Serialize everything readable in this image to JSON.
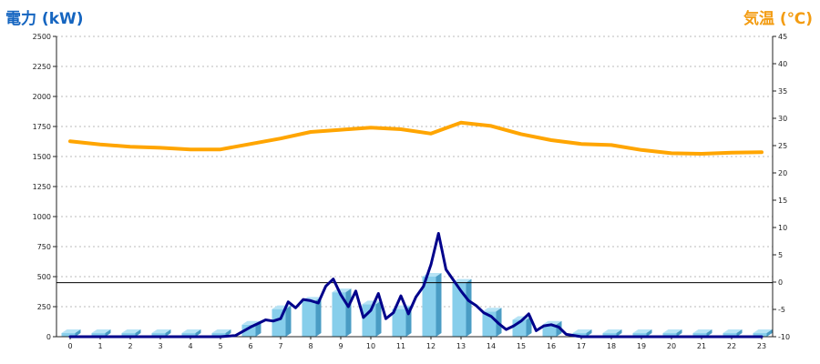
{
  "chart_data": {
    "type": "bar",
    "left_axis_label": "電力 (kW)",
    "right_axis_label": "気温 (℃)",
    "left_ylim": [
      0,
      2500
    ],
    "left_ticks": [
      0,
      250,
      500,
      750,
      1000,
      1250,
      1500,
      1750,
      2000,
      2250,
      2500
    ],
    "right_ylim": [
      -10,
      45
    ],
    "right_ticks": [
      -10,
      -5,
      0,
      5,
      10,
      15,
      20,
      25,
      30,
      35,
      40,
      45
    ],
    "categories": [
      "0",
      "1",
      "2",
      "3",
      "4",
      "5",
      "6",
      "7",
      "8",
      "9",
      "10",
      "11",
      "12",
      "13",
      "14",
      "15",
      "16",
      "17",
      "18",
      "19",
      "20",
      "21",
      "22",
      "23"
    ],
    "reference_line_kw": 450,
    "grid": true,
    "series": [
      {
        "kind": "bar",
        "color": "#87ceeb",
        "values": [
          30,
          30,
          30,
          30,
          30,
          30,
          100,
          230,
          300,
          370,
          270,
          230,
          500,
          450,
          210,
          140,
          100,
          30,
          30,
          30,
          30,
          30,
          30,
          30
        ]
      },
      {
        "kind": "line",
        "axis": "left",
        "color": "#00008b",
        "x": [
          0,
          1,
          2,
          3,
          4,
          5,
          5.5,
          6,
          6.25,
          6.5,
          6.75,
          7,
          7.25,
          7.5,
          7.75,
          8,
          8.25,
          8.5,
          8.75,
          9,
          9.25,
          9.5,
          9.75,
          10,
          10.25,
          10.5,
          10.75,
          11,
          11.25,
          11.5,
          11.75,
          12,
          12.25,
          12.5,
          12.75,
          13,
          13.25,
          13.5,
          13.75,
          14,
          14.25,
          14.5,
          14.75,
          15,
          15.25,
          15.5,
          15.75,
          16,
          16.25,
          16.5,
          17,
          18,
          19,
          20,
          21,
          22,
          23
        ],
        "values": [
          0,
          0,
          0,
          0,
          0,
          0,
          10,
          80,
          110,
          140,
          130,
          150,
          290,
          240,
          310,
          300,
          280,
          420,
          480,
          350,
          250,
          380,
          160,
          220,
          360,
          150,
          200,
          340,
          190,
          330,
          420,
          600,
          860,
          560,
          470,
          380,
          300,
          260,
          200,
          170,
          110,
          60,
          90,
          130,
          190,
          50,
          90,
          100,
          80,
          20,
          0,
          0,
          0,
          0,
          0,
          0,
          0
        ]
      },
      {
        "kind": "line",
        "axis": "right",
        "color": "#ffa500",
        "x": [
          0,
          1,
          2,
          3,
          4,
          5,
          6,
          7,
          8,
          9,
          10,
          11,
          12,
          12.5,
          13,
          14,
          15,
          16,
          17,
          18,
          19,
          20,
          21,
          22,
          23
        ],
        "values": [
          25.8,
          25.2,
          24.8,
          24.6,
          24.3,
          24.3,
          25.3,
          26.3,
          27.5,
          27.9,
          28.3,
          28.0,
          27.2,
          28.2,
          29.2,
          28.6,
          27.1,
          26.0,
          25.3,
          25.1,
          24.2,
          23.6,
          23.5,
          23.7,
          23.8
        ]
      }
    ]
  }
}
